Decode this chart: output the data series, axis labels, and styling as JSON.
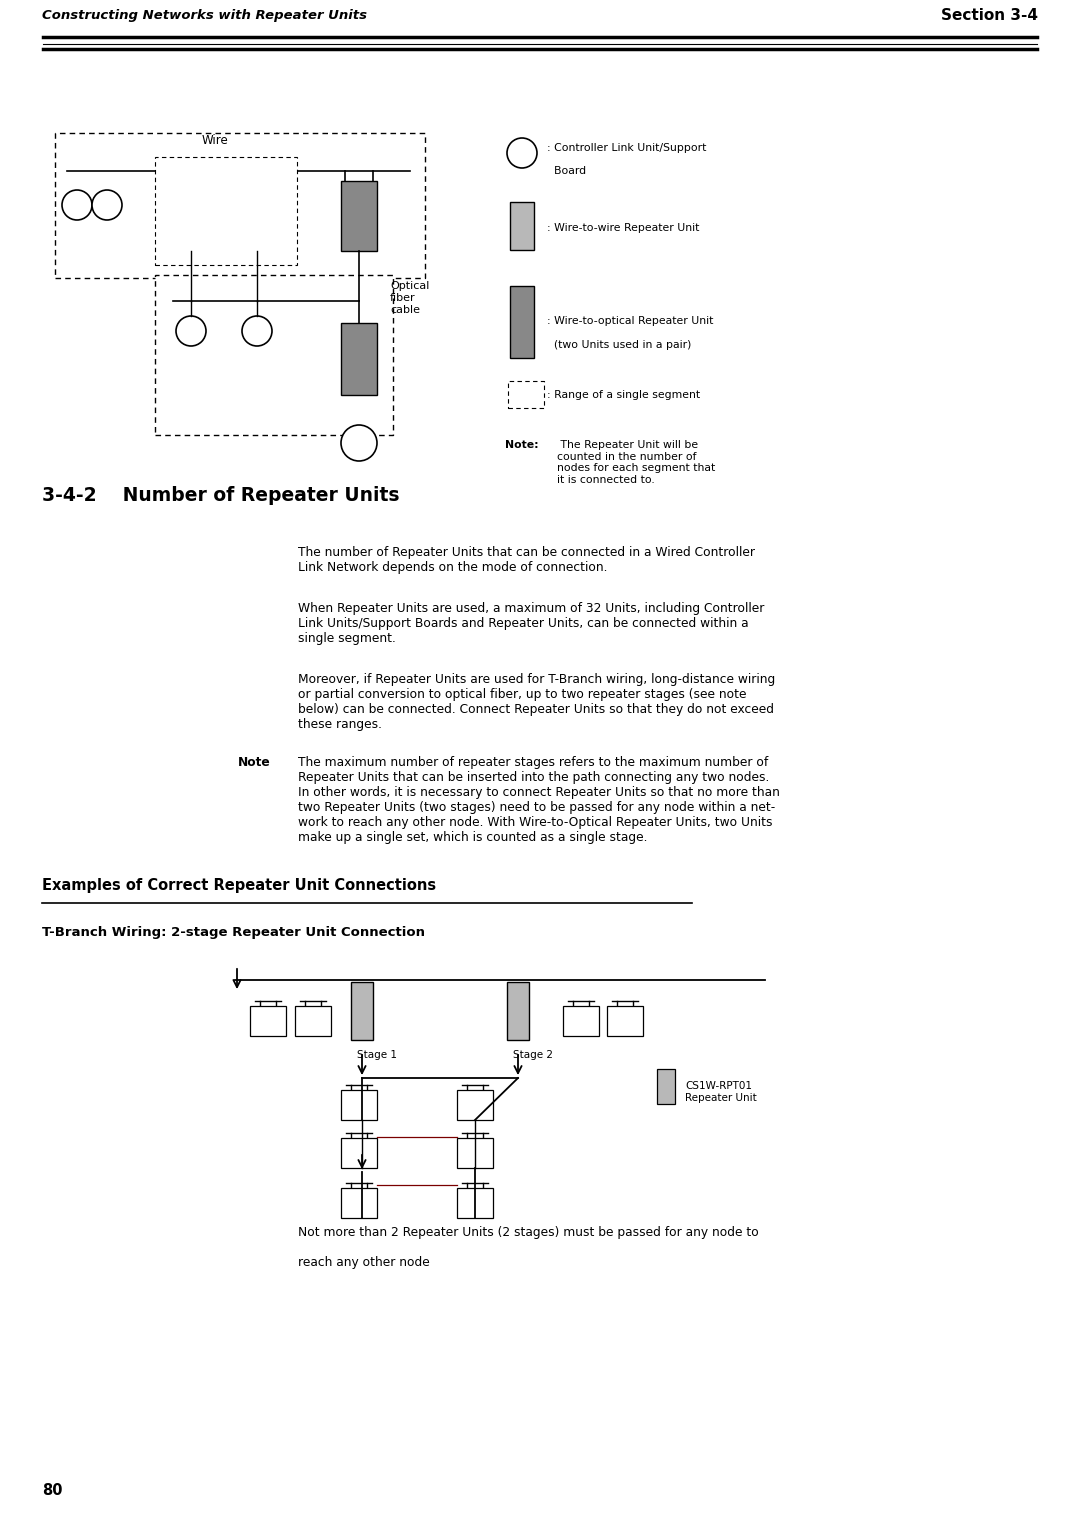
{
  "page_width": 10.8,
  "page_height": 15.28,
  "bg_color": "#ffffff",
  "header_left": "Constructing Networks with Repeater Units",
  "header_right": "Section 3-4",
  "section_title": "3-4-2    Number of Repeater Units",
  "examples_title": "Examples of Correct Repeater Unit Connections",
  "tbranch_title": "T-Branch Wiring: 2-stage Repeater Unit Connection",
  "bottom_text_1": "Not more than 2 Repeater Units (2 stages) must be passed for any node to",
  "bottom_text_2": "reach any other node",
  "page_number": "80",
  "gray_light": "#b8b8b8",
  "gray_dark": "#888888"
}
